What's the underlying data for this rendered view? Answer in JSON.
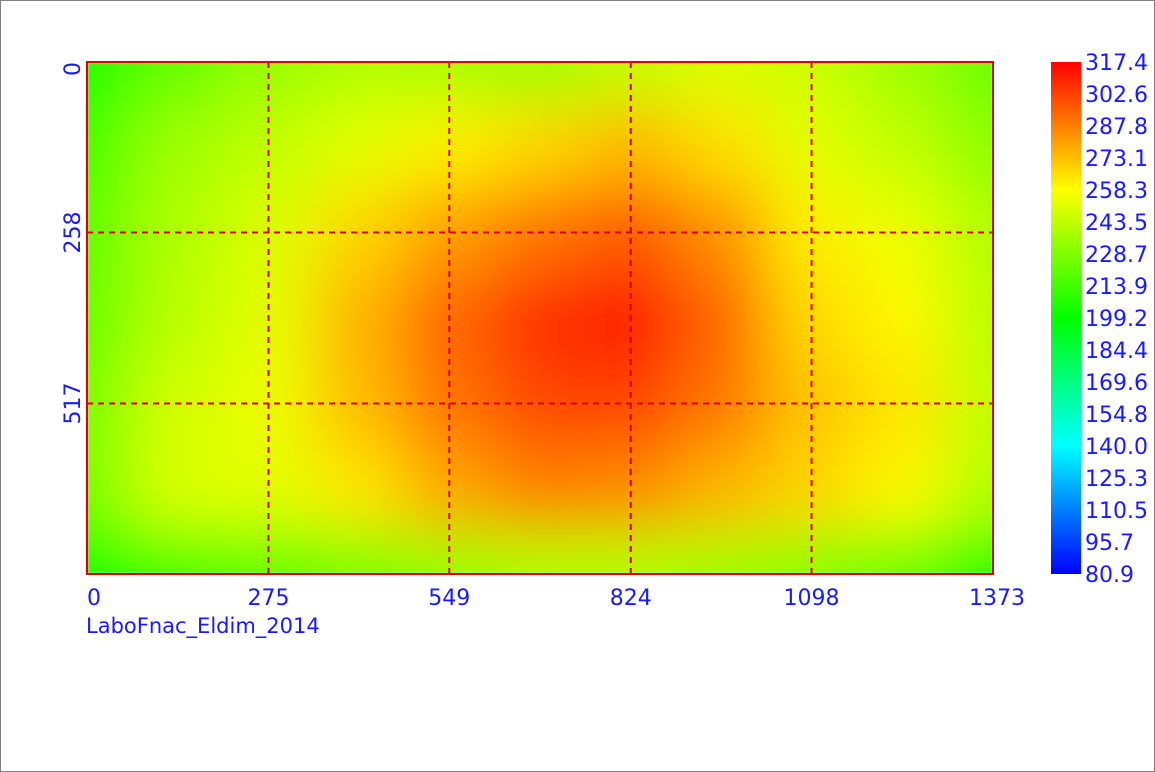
{
  "chart_data": {
    "type": "heatmap",
    "caption": "LaboFnac_Eldim_2014",
    "x_ticks": [
      "0",
      "275",
      "549",
      "824",
      "1098",
      "1373"
    ],
    "y_ticks": [
      "0",
      "258",
      "517"
    ],
    "xlim": [
      0,
      1373
    ],
    "ylim": [
      0,
      775
    ],
    "grid": true,
    "colorbar": {
      "placement": "right",
      "labels": [
        "317.4",
        "302.6",
        "287.8",
        "273.1",
        "258.3",
        "243.5",
        "228.7",
        "213.9",
        "199.2",
        "184.4",
        "169.6",
        "154.8",
        "140.0",
        "125.3",
        "110.5",
        "95.7",
        "80.9"
      ],
      "min": 80.9,
      "max": 317.4
    },
    "value_grid_x": [
      0,
      137,
      275,
      412,
      549,
      687,
      824,
      961,
      1098,
      1236,
      1373
    ],
    "value_grid_y": [
      0,
      129,
      258,
      388,
      517,
      646,
      775
    ],
    "values": [
      [
        206,
        222,
        234,
        240,
        238,
        236,
        244,
        250,
        246,
        236,
        224
      ],
      [
        216,
        236,
        244,
        252,
        262,
        268,
        275,
        266,
        252,
        244,
        232
      ],
      [
        222,
        240,
        250,
        268,
        281,
        291,
        297,
        284,
        262,
        254,
        240
      ],
      [
        224,
        242,
        252,
        276,
        294,
        307,
        312,
        294,
        267,
        260,
        242
      ],
      [
        228,
        248,
        254,
        274,
        291,
        301,
        302,
        290,
        272,
        264,
        244
      ],
      [
        228,
        250,
        252,
        264,
        279,
        288,
        286,
        276,
        268,
        260,
        240
      ],
      [
        198,
        214,
        220,
        226,
        234,
        240,
        240,
        236,
        230,
        222,
        200
      ]
    ],
    "colors": {
      "frame": "#e00000",
      "grid": "#e00000",
      "text": "#1a1aff",
      "scale": [
        "#0000ff",
        "#00ffff",
        "#00ff00",
        "#ffff00",
        "#ff0000"
      ]
    }
  }
}
